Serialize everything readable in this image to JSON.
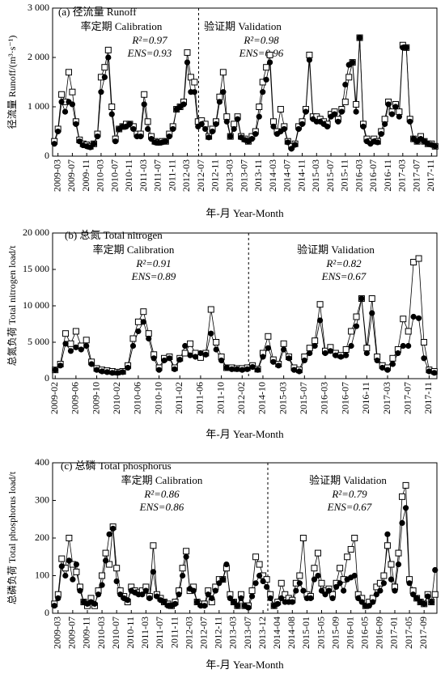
{
  "chart_data": [
    {
      "type": "line",
      "title": "(a) 径流量 Runoff",
      "x_label": "年-月 Year-Month",
      "y_label": "径流量 Runoff/(m³·s⁻¹)",
      "annotations": [
        "率定期 Calibration",
        "R²=0.97",
        "ENS=0.93",
        "验证期 Validation",
        "R²=0.98",
        "ENS=0.96"
      ],
      "categories": [
        null,
        "2009-03",
        null,
        null,
        null,
        "2009-07",
        null,
        null,
        null,
        "2009-11",
        null,
        null,
        null,
        "2010-03",
        null,
        null,
        null,
        "2010-07",
        null,
        null,
        null,
        "2010-11",
        null,
        null,
        null,
        "2011-03",
        null,
        null,
        null,
        "2011-07",
        null,
        null,
        null,
        "2011-11",
        null,
        null,
        null,
        "2012-03",
        null,
        null,
        null,
        "2012-07",
        null,
        null,
        null,
        "2012-11",
        null,
        null,
        null,
        "2013-03",
        null,
        null,
        null,
        "2013-07",
        null,
        null,
        null,
        "2013-11",
        null,
        null,
        null,
        "2014-03",
        null,
        null,
        null,
        "2014-07",
        null,
        null,
        null,
        "2014-11",
        null,
        null,
        null,
        "2015-03",
        null,
        null,
        null,
        "2015-07",
        null,
        null,
        null,
        "2015-11",
        null,
        null,
        null,
        "2016-03",
        null,
        null,
        null,
        "2016-07",
        null,
        null,
        null,
        "2016-11",
        null,
        null,
        null,
        "2017-03",
        null,
        null,
        null,
        "2017-07",
        null,
        null,
        null,
        "2017-11",
        null
      ],
      "ylim": [
        0,
        3000
      ],
      "yticks": [
        0,
        {
          "value": 1000,
          "label": "1 000"
        },
        {
          "value": 2000,
          "label": "2 000"
        },
        {
          "value": 3000,
          "label": "3 000"
        }
      ],
      "series": [
        {
          "marker": "square",
          "color": "#000000",
          "values": [
            300,
            550,
            1250,
            1100,
            1700,
            1300,
            700,
            330,
            250,
            230,
            200,
            250,
            450,
            1600,
            1800,
            2150,
            1000,
            350,
            550,
            600,
            650,
            650,
            600,
            450,
            450,
            1250,
            700,
            400,
            300,
            280,
            300,
            300,
            450,
            600,
            950,
            1000,
            1100,
            2100,
            1600,
            1500,
            700,
            720,
            650,
            400,
            550,
            700,
            1200,
            1700,
            800,
            400,
            650,
            800,
            400,
            350,
            300,
            400,
            500,
            1000,
            1500,
            1800,
            2050,
            700,
            500,
            950,
            600,
            300,
            200,
            250,
            600,
            700,
            950,
            2050,
            800,
            800,
            750,
            700,
            650,
            850,
            900,
            750,
            950,
            1100,
            1600,
            1900,
            1050,
            2400,
            650,
            350,
            300,
            350,
            300,
            500,
            750,
            1100,
            900,
            1050,
            900,
            2250,
            2200,
            750,
            350,
            300,
            400,
            300,
            250,
            250,
            200
          ]
        },
        {
          "marker": "circle",
          "color": "#000000",
          "values": [
            250,
            500,
            1100,
            900,
            1100,
            1050,
            650,
            300,
            220,
            200,
            180,
            250,
            400,
            1300,
            1600,
            2000,
            850,
            300,
            550,
            600,
            600,
            650,
            550,
            400,
            400,
            1050,
            550,
            350,
            280,
            270,
            280,
            300,
            400,
            550,
            950,
            1000,
            1050,
            1900,
            1300,
            1300,
            600,
            650,
            550,
            380,
            500,
            650,
            1100,
            1300,
            700,
            400,
            550,
            750,
            380,
            330,
            300,
            350,
            450,
            800,
            1300,
            1550,
            1900,
            600,
            450,
            500,
            550,
            280,
            150,
            230,
            550,
            650,
            900,
            1950,
            750,
            700,
            700,
            650,
            600,
            800,
            850,
            700,
            900,
            1450,
            1850,
            1900,
            900,
            2400,
            600,
            300,
            250,
            300,
            280,
            450,
            650,
            1050,
            850,
            1000,
            800,
            2200,
            2200,
            700,
            350,
            300,
            350,
            300,
            250,
            230,
            200
          ]
        }
      ]
    },
    {
      "type": "line",
      "title": "(b) 总氮 Total nitrogen",
      "x_label": "年-月 Year-Month",
      "y_label": "总氮负荷 Total nitrogen load/t",
      "annotations": [
        "率定期 Calibration",
        "R²=0.91",
        "ENS=0.89",
        "验证期 Validation",
        "R²=0.82",
        "ENS=0.67"
      ],
      "categories": [
        "2009-02",
        null,
        null,
        null,
        "2009-06",
        null,
        null,
        null,
        "2009-10",
        null,
        null,
        null,
        "2010-02",
        null,
        null,
        null,
        "2010-06",
        null,
        null,
        null,
        "2010-10",
        null,
        null,
        null,
        "2011-02",
        null,
        null,
        null,
        "2011-06",
        null,
        null,
        null,
        "2011-10",
        null,
        null,
        null,
        "2012-02",
        null,
        null,
        null,
        "2014-10",
        null,
        null,
        null,
        "2015-03",
        null,
        null,
        null,
        "2015-07",
        null,
        null,
        null,
        "2016-03",
        null,
        null,
        null,
        "2016-07",
        null,
        null,
        null,
        "2016-11",
        null,
        null,
        null,
        "2017-03",
        null,
        null,
        null,
        "2017-07",
        null,
        null,
        null,
        "2017-11",
        null
      ],
      "ylim": [
        0,
        20000
      ],
      "yticks": [
        0,
        {
          "value": 5000,
          "label": "5 000"
        },
        {
          "value": 10000,
          "label": "10 000"
        },
        {
          "value": 15000,
          "label": "15 000"
        },
        {
          "value": 20000,
          "label": "20 000"
        }
      ],
      "series": [
        {
          "marker": "square",
          "color": "#000000",
          "values": [
            1200,
            2000,
            6200,
            4800,
            6500,
            4500,
            5300,
            2300,
            1400,
            1200,
            1100,
            1000,
            900,
            1000,
            1800,
            5500,
            7800,
            9200,
            6200,
            3300,
            1500,
            2800,
            3000,
            1500,
            2800,
            3500,
            4800,
            3500,
            2900,
            3500,
            9500,
            5000,
            3000,
            1500,
            1500,
            1400,
            1400,
            1500,
            1800,
            1300,
            3500,
            5800,
            2600,
            2000,
            4800,
            3000,
            1500,
            1200,
            3000,
            4200,
            5200,
            10200,
            3800,
            4300,
            3500,
            3200,
            4000,
            6500,
            8500,
            11000,
            4200,
            11000,
            3000,
            1800,
            1500,
            2800,
            4000,
            8200,
            6500,
            16000,
            16500,
            5000,
            1200,
            1000
          ]
        },
        {
          "marker": "circle",
          "color": "#000000",
          "values": [
            1200,
            1800,
            4800,
            3800,
            4300,
            4000,
            4500,
            2000,
            1200,
            1000,
            900,
            800,
            800,
            900,
            1500,
            4500,
            6500,
            7800,
            5500,
            2800,
            1200,
            2500,
            2800,
            1300,
            2600,
            4500,
            3200,
            3000,
            3500,
            3300,
            6200,
            4000,
            2500,
            1500,
            1300,
            1300,
            1200,
            1300,
            1600,
            1200,
            3000,
            4200,
            2300,
            1800,
            4000,
            2800,
            1200,
            1000,
            2500,
            3500,
            4500,
            8000,
            3500,
            3800,
            3200,
            3000,
            3200,
            4500,
            7200,
            11000,
            3500,
            9000,
            2500,
            1500,
            1200,
            2000,
            3500,
            4500,
            4500,
            8500,
            8300,
            2800,
            1000,
            800
          ]
        }
      ]
    },
    {
      "type": "line",
      "title": "(c) 总磷 Total phosphorus",
      "x_label": "年-月 Year-Month",
      "y_label": "总磷负荷 Total phosphorus load/t",
      "annotations": [
        "率定期 Calibration",
        "R²=0.86",
        "ENS=0.86",
        "验证期 Validation",
        "R²=0.79",
        "ENS=0.67"
      ],
      "categories": [
        null,
        "2009-03",
        null,
        null,
        null,
        "2009-07",
        null,
        null,
        null,
        "2009-11",
        null,
        null,
        null,
        "2010-03",
        null,
        null,
        null,
        "2010-07",
        null,
        null,
        null,
        "2010-11",
        null,
        null,
        null,
        "2011-03",
        null,
        null,
        null,
        "2011-07",
        null,
        null,
        null,
        "2011-11",
        null,
        null,
        null,
        "2012-03",
        null,
        null,
        null,
        "2012-07",
        null,
        null,
        null,
        "2012-11",
        null,
        null,
        null,
        "2013-03",
        null,
        null,
        null,
        "2013-07",
        null,
        null,
        null,
        "2013-12",
        null,
        null,
        null,
        "2014-04",
        null,
        null,
        null,
        "2014-08",
        null,
        null,
        null,
        "2015-01",
        null,
        null,
        null,
        "2015-05",
        null,
        null,
        null,
        "2015-09",
        null,
        null,
        null,
        "2016-01",
        null,
        null,
        null,
        "2016-05",
        null,
        null,
        null,
        "2016-09",
        null,
        null,
        null,
        "2017-01",
        null,
        null,
        null,
        "2017-05",
        null,
        null,
        null,
        "2017-09",
        null,
        null,
        null
      ],
      "ylim": [
        0,
        400
      ],
      "yticks": [
        0,
        100,
        200,
        300,
        400
      ],
      "series": [
        {
          "marker": "square",
          "color": "#000000",
          "values": [
            25,
            50,
            145,
            120,
            200,
            130,
            110,
            70,
            30,
            20,
            40,
            20,
            60,
            100,
            160,
            130,
            230,
            120,
            60,
            45,
            30,
            70,
            60,
            55,
            60,
            70,
            45,
            180,
            50,
            40,
            30,
            25,
            20,
            30,
            60,
            120,
            165,
            60,
            70,
            30,
            25,
            25,
            60,
            30,
            70,
            90,
            90,
            120,
            50,
            30,
            20,
            50,
            20,
            20,
            60,
            150,
            130,
            100,
            90,
            50,
            20,
            30,
            80,
            50,
            40,
            35,
            80,
            100,
            200,
            50,
            45,
            120,
            160,
            80,
            60,
            65,
            50,
            80,
            120,
            90,
            150,
            170,
            200,
            50,
            40,
            20,
            30,
            40,
            70,
            80,
            100,
            180,
            130,
            70,
            160,
            310,
            340,
            90,
            60,
            40,
            30,
            25,
            50,
            30,
            50
          ]
        },
        {
          "marker": "circle",
          "color": "#000000",
          "values": [
            20,
            40,
            125,
            100,
            140,
            90,
            130,
            60,
            30,
            25,
            30,
            25,
            50,
            75,
            140,
            210,
            225,
            85,
            50,
            40,
            35,
            60,
            55,
            50,
            50,
            60,
            40,
            110,
            45,
            35,
            30,
            20,
            20,
            25,
            50,
            100,
            150,
            65,
            60,
            30,
            20,
            20,
            50,
            40,
            60,
            80,
            90,
            130,
            40,
            30,
            20,
            40,
            20,
            15,
            45,
            80,
            100,
            85,
            70,
            40,
            20,
            25,
            40,
            30,
            30,
            30,
            60,
            80,
            60,
            40,
            40,
            90,
            100,
            60,
            50,
            60,
            40,
            70,
            80,
            60,
            90,
            95,
            100,
            40,
            30,
            20,
            20,
            30,
            50,
            60,
            80,
            210,
            90,
            60,
            130,
            240,
            280,
            80,
            50,
            40,
            30,
            25,
            45,
            30,
            115
          ]
        }
      ]
    }
  ]
}
